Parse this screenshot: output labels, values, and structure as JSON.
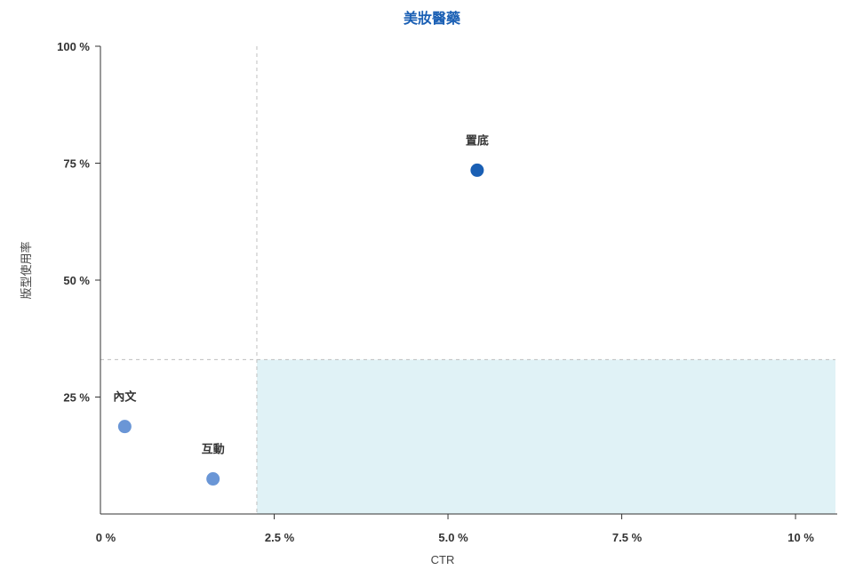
{
  "chart_data": {
    "type": "scatter",
    "title": "美妝醫藥",
    "xlabel": "CTR",
    "ylabel": "版型使用率",
    "xlim": [
      0,
      10.6
    ],
    "ylim": [
      0,
      100
    ],
    "x_ticks": [
      {
        "value": 0,
        "label": "0 %"
      },
      {
        "value": 2.5,
        "label": "2.5 %"
      },
      {
        "value": 5.0,
        "label": "5.0 %"
      },
      {
        "value": 7.5,
        "label": "7.5 %"
      },
      {
        "value": 10,
        "label": "10 %"
      }
    ],
    "y_ticks": [
      {
        "value": 25,
        "label": "25 %"
      },
      {
        "value": 50,
        "label": "50 %"
      },
      {
        "value": 75,
        "label": "75 %"
      },
      {
        "value": 100,
        "label": "100 %"
      }
    ],
    "reference_lines": {
      "x": 2.25,
      "y": 33
    },
    "highlight_region": {
      "x_from": 2.25,
      "y_to": 33,
      "color": "#e0f2f6"
    },
    "points": [
      {
        "label": "內文",
        "x": 0.35,
        "y": 18.7,
        "color": "#6a96d6"
      },
      {
        "label": "互動",
        "x": 1.62,
        "y": 7.5,
        "color": "#6a96d6"
      },
      {
        "label": "置底",
        "x": 5.42,
        "y": 73.5,
        "color": "#1a5fb4"
      }
    ],
    "colors": {
      "title": "#1a5fb4",
      "axis": "#333333",
      "reference_line": "#bfbfbf",
      "region": "#e0f2f6"
    }
  }
}
